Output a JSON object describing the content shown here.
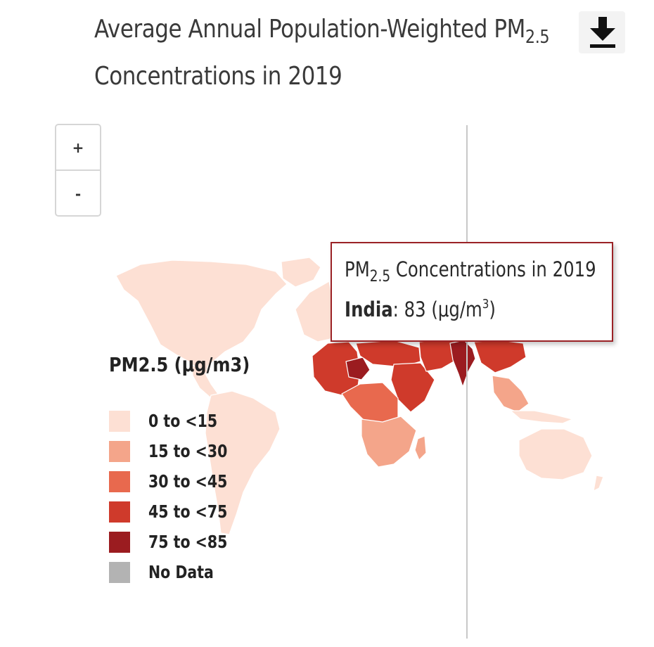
{
  "title": {
    "line1_prefix": "Average Annual Population-Weighted PM",
    "line1_subscript": "2.5",
    "line2": "Concentrations in 2019"
  },
  "toolbar": {
    "download_icon": "download-icon"
  },
  "zoom": {
    "in_label": "+",
    "out_label": "-"
  },
  "legend": {
    "title": "PM2.5 (μg/m3)",
    "items": [
      {
        "label": "0 to <15",
        "color": "#fde0d4"
      },
      {
        "label": "15 to <30",
        "color": "#f4a58a"
      },
      {
        "label": "30 to <45",
        "color": "#e8694e"
      },
      {
        "label": "45 to <75",
        "color": "#cf3a2b"
      },
      {
        "label": "75 to <85",
        "color": "#9b1c20"
      },
      {
        "label": "No Data",
        "color": "#b3b3b3"
      }
    ]
  },
  "tooltip": {
    "title_prefix": "PM",
    "title_subscript": "2.5",
    "title_suffix": " Concentrations in 2019",
    "country": "India",
    "separator": ": ",
    "value": "83",
    "unit_prefix": " (μg/m",
    "unit_superscript": "3",
    "unit_suffix": ")"
  },
  "map_data": {
    "selected_country": "India",
    "selected_value": 83,
    "region_bins": {
      "north-america": "0 to <15",
      "south-america": "0 to <15",
      "europe": "0 to <15",
      "australia": "0 to <15",
      "west-africa": "45 to <75",
      "sahel": "75 to <85",
      "central-africa": "30 to <45",
      "southern-africa": "15 to <30",
      "middle-east": "45 to <75",
      "india": "75 to <85",
      "southeast-asia": "15 to <30"
    }
  }
}
